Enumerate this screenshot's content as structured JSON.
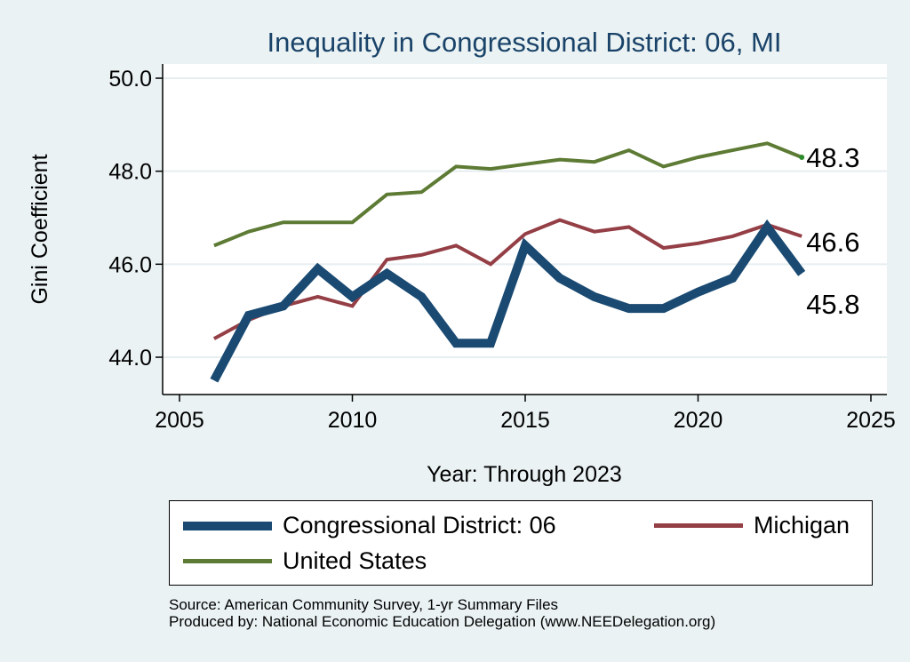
{
  "chart_data": {
    "type": "line",
    "title": "Inequality in Congressional District:  06, MI",
    "xlabel": "Year: Through 2023",
    "ylabel": "Gini Coefficient",
    "xlim": [
      2004.5,
      2025.5
    ],
    "ylim": [
      43.2,
      50.3
    ],
    "xticks": [
      2005,
      2010,
      2015,
      2020,
      2025
    ],
    "yticks": [
      44.0,
      46.0,
      48.0,
      50.0
    ],
    "ytick_labels": [
      "44.0",
      "46.0",
      "48.0",
      "50.0"
    ],
    "grid": true,
    "legend_position": "bottom",
    "x": [
      2006,
      2007,
      2008,
      2009,
      2010,
      2011,
      2012,
      2013,
      2014,
      2015,
      2016,
      2017,
      2018,
      2019,
      2020,
      2021,
      2022,
      2023
    ],
    "series": [
      {
        "name": "Congressional District:  06",
        "color": "#1a4a72",
        "values": [
          43.5,
          44.9,
          45.1,
          45.9,
          45.3,
          45.8,
          45.3,
          44.3,
          44.3,
          46.4,
          45.7,
          45.3,
          45.05,
          45.05,
          45.4,
          45.7,
          46.8,
          45.8
        ],
        "end_label": "45.8"
      },
      {
        "name": "Michigan",
        "color": "#943e45",
        "values": [
          44.4,
          44.8,
          45.1,
          45.3,
          45.1,
          46.1,
          46.2,
          46.4,
          46.0,
          46.65,
          46.95,
          46.7,
          46.8,
          46.35,
          46.45,
          46.6,
          46.85,
          46.6
        ],
        "end_label": "46.6"
      },
      {
        "name": "United States",
        "color": "#5d7b34",
        "values": [
          46.4,
          46.7,
          46.9,
          46.9,
          46.9,
          47.5,
          47.55,
          48.1,
          48.05,
          48.15,
          48.25,
          48.2,
          48.45,
          48.1,
          48.3,
          48.45,
          48.6,
          48.3
        ],
        "end_label": "48.3"
      }
    ]
  },
  "source_line1": "Source: American Community Survey, 1-yr Summary Files",
  "source_line2": "Produced by: National Economic Education Delegation (www.NEEDelegation.org)"
}
